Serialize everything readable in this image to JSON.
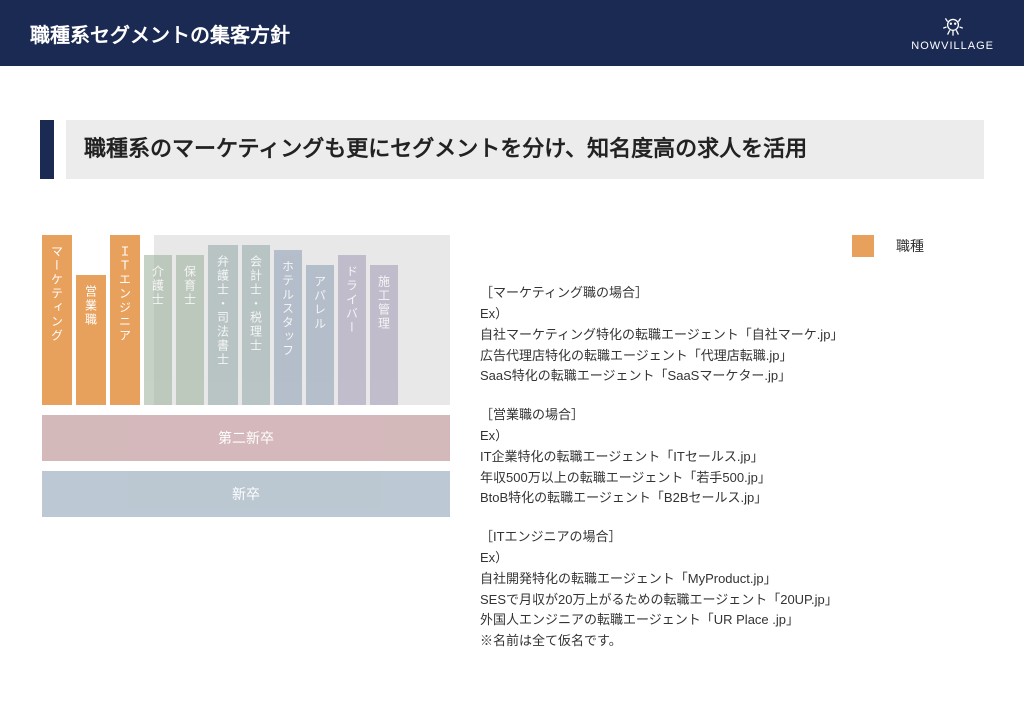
{
  "header": {
    "title": "職種系セグメントの集客方針",
    "brand": "NOWVILLAGE"
  },
  "subtitle": "職種系のマーケティングも更にセグメントを分け、知名度高の求人を活用",
  "colors": {
    "header_bg": "#1a2a52",
    "subtitle_bg": "#ececec",
    "accent": "#1a2a52",
    "orange": "#e8a15c",
    "faded_bg": "#e8e8e8",
    "muted_green": "#9aae99",
    "muted_teal": "#91a8a8",
    "muted_blue": "#8b9cb3",
    "muted_purple": "#a399b5",
    "muted_red": "#b88a8e",
    "muted_steel": "#8fa4b5"
  },
  "diagram": {
    "highlighted_bars": [
      {
        "label": "マーケティング",
        "color": "#e8a15c",
        "height": 170,
        "width": 30
      },
      {
        "label": "営業職",
        "color": "#e8a15c",
        "height": 130,
        "width": 30
      },
      {
        "label": "ＩＴエンジニア",
        "color": "#e8a15c",
        "height": 170,
        "width": 30
      }
    ],
    "muted_bars": [
      {
        "label": "介護士",
        "color": "#9aae99",
        "height": 150,
        "width": 28
      },
      {
        "label": "保育士",
        "color": "#9aae99",
        "height": 150,
        "width": 28
      },
      {
        "label": "弁護士・司法書士",
        "color": "#91a8a8",
        "height": 160,
        "width": 30
      },
      {
        "label": "会計士・税理士",
        "color": "#91a8a8",
        "height": 160,
        "width": 28
      },
      {
        "label": "ホテルスタッフ",
        "color": "#8b9cb3",
        "height": 155,
        "width": 28
      },
      {
        "label": "アパレル",
        "color": "#8b9cb3",
        "height": 140,
        "width": 28
      },
      {
        "label": "ドライバー",
        "color": "#a399b5",
        "height": 150,
        "width": 28
      },
      {
        "label": "施工管理",
        "color": "#a399b5",
        "height": 140,
        "width": 28
      }
    ],
    "horizontal_bars": [
      {
        "label": "第二新卒",
        "color": "#b88a8e"
      },
      {
        "label": "新卒",
        "color": "#8fa4b5"
      }
    ]
  },
  "legend": {
    "color": "#e8a15c",
    "label": "職種"
  },
  "sections": [
    {
      "heading": "［マーケティング職の場合］",
      "ex": "Ex）",
      "lines": [
        "自社マーケティング特化の転職エージェント「自社マーケ.jp」",
        "広告代理店特化の転職エージェント「代理店転職.jp」",
        "SaaS特化の転職エージェント「SaaSマーケター.jp」"
      ]
    },
    {
      "heading": "［営業職の場合］",
      "ex": "Ex）",
      "lines": [
        "IT企業特化の転職エージェント「ITセールス.jp」",
        "年収500万以上の転職エージェント「若手500.jp」",
        "BtoB特化の転職エージェント「B2Bセールス.jp」"
      ]
    },
    {
      "heading": "［ITエンジニアの場合］",
      "ex": "Ex）",
      "lines": [
        "自社開発特化の転職エージェント「MyProduct.jp」",
        "SESで月収が20万上がるための転職エージェント「20UP.jp」",
        "外国人エンジニアの転職エージェント「UR Place .jp」",
        "※名前は全て仮名です。"
      ]
    }
  ]
}
